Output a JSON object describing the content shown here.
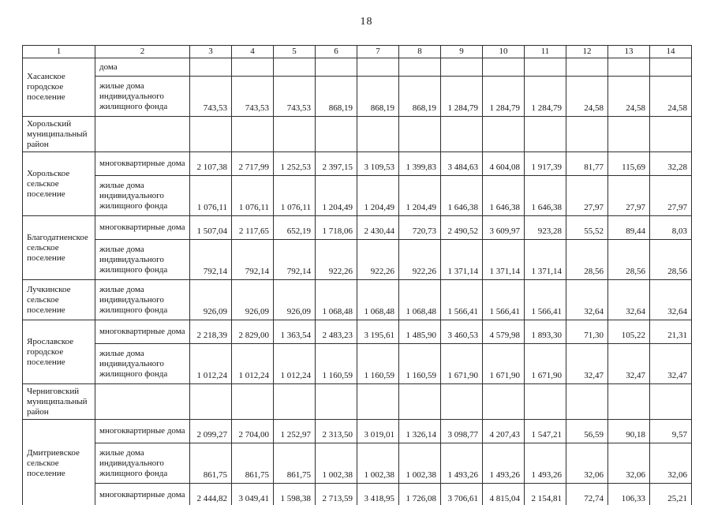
{
  "page": {
    "number": "18"
  },
  "table": {
    "columns": [
      "1",
      "2",
      "3",
      "4",
      "5",
      "6",
      "7",
      "8",
      "9",
      "10",
      "11",
      "12",
      "13",
      "14"
    ],
    "groups": [
      {
        "territory": "Хасанское городское поселение",
        "rows": [
          {
            "category": "дома",
            "values": [
              "",
              "",
              "",
              "",
              "",
              "",
              "",
              "",
              "",
              "",
              "",
              ""
            ]
          },
          {
            "category": "жилые дома индивидуального жилищного фонда",
            "values": [
              "743,53",
              "743,53",
              "743,53",
              "868,19",
              "868,19",
              "868,19",
              "1 284,79",
              "1 284,79",
              "1 284,79",
              "24,58",
              "24,58",
              "24,58"
            ]
          }
        ]
      },
      {
        "territory": "Хорольский муниципальный район",
        "rows": [
          {
            "category": "",
            "values": [
              "",
              "",
              "",
              "",
              "",
              "",
              "",
              "",
              "",
              "",
              "",
              ""
            ]
          }
        ]
      },
      {
        "territory": "Хорольское сельское поселение",
        "rows": [
          {
            "category": "многоквартирные дома",
            "values": [
              "2 107,38",
              "2 717,99",
              "1 252,53",
              "2 397,15",
              "3 109,53",
              "1 399,83",
              "3 484,63",
              "4 604,08",
              "1 917,39",
              "81,77",
              "115,69",
              "32,28"
            ]
          },
          {
            "category": "жилые дома индивидуального жилищного фонда",
            "values": [
              "1 076,11",
              "1 076,11",
              "1 076,11",
              "1 204,49",
              "1 204,49",
              "1 204,49",
              "1 646,38",
              "1 646,38",
              "1 646,38",
              "27,97",
              "27,97",
              "27,97"
            ]
          }
        ]
      },
      {
        "territory": "Благодатненское сельское поселение",
        "rows": [
          {
            "category": "многоквартирные дома",
            "values": [
              "1 507,04",
              "2 117,65",
              "652,19",
              "1 718,06",
              "2 430,44",
              "720,73",
              "2 490,52",
              "3 609,97",
              "923,28",
              "55,52",
              "89,44",
              "8,03"
            ]
          },
          {
            "category": "жилые дома индивидуального жилищного фонда",
            "values": [
              "792,14",
              "792,14",
              "792,14",
              "922,26",
              "922,26",
              "922,26",
              "1 371,14",
              "1 371,14",
              "1 371,14",
              "28,56",
              "28,56",
              "28,56"
            ]
          }
        ]
      },
      {
        "territory": "Лучкинское сельское поселение",
        "rows": [
          {
            "category": "жилые дома индивидуального жилищного фонда",
            "values": [
              "926,09",
              "926,09",
              "926,09",
              "1 068,48",
              "1 068,48",
              "1 068,48",
              "1 566,41",
              "1 566,41",
              "1 566,41",
              "32,64",
              "32,64",
              "32,64"
            ]
          }
        ]
      },
      {
        "territory": "Ярославское городское поселение",
        "rows": [
          {
            "category": "многоквартирные дома",
            "values": [
              "2 218,39",
              "2 829,00",
              "1 363,54",
              "2 483,23",
              "3 195,61",
              "1 485,90",
              "3 460,53",
              "4 579,98",
              "1 893,30",
              "71,30",
              "105,22",
              "21,31"
            ]
          },
          {
            "category": "жилые дома индивидуального жилищного фонда",
            "values": [
              "1 012,24",
              "1 012,24",
              "1 012,24",
              "1 160,59",
              "1 160,59",
              "1 160,59",
              "1 671,90",
              "1 671,90",
              "1 671,90",
              "32,47",
              "32,47",
              "32,47"
            ]
          }
        ]
      },
      {
        "territory": "Черниговский муниципальный район",
        "rows": [
          {
            "category": "",
            "values": [
              "",
              "",
              "",
              "",
              "",
              "",
              "",
              "",
              "",
              "",
              "",
              ""
            ]
          }
        ]
      },
      {
        "territory": "Дмитриевское сельское поселение",
        "rows": [
          {
            "category": "многоквартирные дома",
            "values": [
              "2 099,27",
              "2 704,00",
              "1 252,97",
              "2 313,50",
              "3 019,01",
              "1 326,14",
              "3 098,77",
              "4 207,43",
              "1 547,21",
              "56,59",
              "90,18",
              "9,57"
            ]
          },
          {
            "category": "жилые дома индивидуального жилищного фонда",
            "values": [
              "861,75",
              "861,75",
              "861,75",
              "1 002,38",
              "1 002,38",
              "1 002,38",
              "1 493,26",
              "1 493,26",
              "1 493,26",
              "32,06",
              "32,06",
              "32,06"
            ]
          },
          {
            "category": "многоквартирные дома",
            "values": [
              "2 444,82",
              "3 049,41",
              "1 598,38",
              "2 713,59",
              "3 418,95",
              "1 726,08",
              "3 706,61",
              "4 815,04",
              "2 154,81",
              "72,74",
              "106,33",
              "25,21"
            ]
          }
        ]
      }
    ]
  }
}
